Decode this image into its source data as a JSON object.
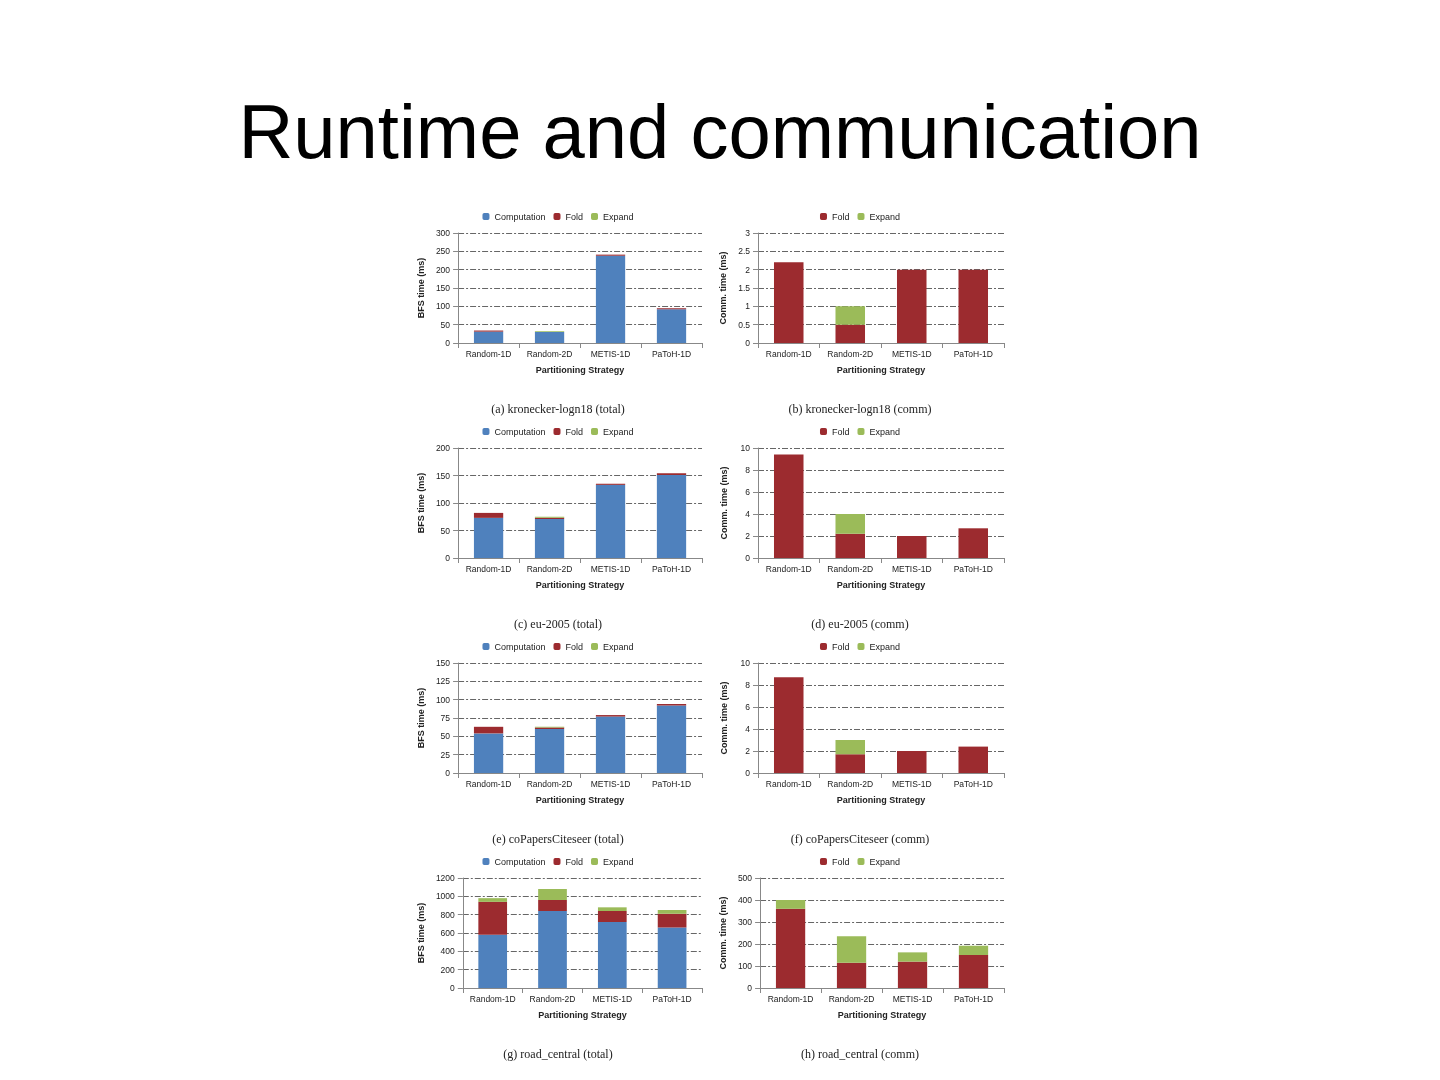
{
  "chart_data": [
    {
      "type": "bar",
      "title": "Runtime and communication",
      "annotations": [
        "(a) kronecker-logn18 (total)"
      ],
      "xlabel": "Partitioning Strategy",
      "ylabel": "BFS time (ms)",
      "categories": [
        "Random-1D",
        "Random-2D",
        "METIS-1D",
        "PaToH-1D"
      ],
      "stacked": true,
      "grid": "y",
      "legend": "top",
      "ylim": [
        0,
        300
      ],
      "yticks": [
        0,
        50,
        100,
        150,
        200,
        250,
        300
      ],
      "series": [
        {
          "name": "Computation",
          "color": "#4f81bd",
          "values": [
            31,
            30,
            238,
            92
          ]
        },
        {
          "name": "Fold",
          "color": "#9c2b2f",
          "values": [
            3,
            null,
            3,
            3
          ]
        },
        {
          "name": "Expand",
          "color": "#9bbb59",
          "values": [
            0,
            2,
            0,
            0
          ]
        }
      ]
    },
    {
      "type": "bar",
      "annotations": [
        "(b) kronecker-logn18 (comm)"
      ],
      "xlabel": "Partitioning Strategy",
      "ylabel": "Comm. time (ms)",
      "categories": [
        "Random-1D",
        "Random-2D",
        "METIS-1D",
        "PaToH-1D"
      ],
      "stacked": true,
      "grid": "y",
      "legend": "top",
      "ylim": [
        0,
        3
      ],
      "yticks": [
        0,
        0.5,
        1,
        1.5,
        2,
        2.5,
        3
      ],
      "series": [
        {
          "name": "Fold",
          "color": "#9c2b2f",
          "values": [
            2.2,
            0.5,
            2,
            2
          ]
        },
        {
          "name": "Expand",
          "color": "#9bbb59",
          "values": [
            0,
            0.5,
            0,
            0
          ]
        }
      ]
    },
    {
      "type": "bar",
      "annotations": [
        "(c) eu-2005 (total)"
      ],
      "xlabel": "Partitioning Strategy",
      "ylabel": "BFS time (ms)",
      "categories": [
        "Random-1D",
        "Random-2D",
        "METIS-1D",
        "PaToH-1D"
      ],
      "stacked": true,
      "grid": "y",
      "legend": "top",
      "ylim": [
        0,
        200
      ],
      "yticks": [
        0,
        50,
        100,
        150,
        200
      ],
      "series": [
        {
          "name": "Computation",
          "color": "#4f81bd",
          "values": [
            73,
            71,
            133,
            151
          ]
        },
        {
          "name": "Fold",
          "color": "#9c2b2f",
          "values": [
            9,
            2,
            2,
            3
          ]
        },
        {
          "name": "Expand",
          "color": "#9bbb59",
          "values": [
            0,
            2,
            0,
            0
          ]
        }
      ]
    },
    {
      "type": "bar",
      "annotations": [
        "(d) eu-2005 (comm)"
      ],
      "xlabel": "Partitioning Strategy",
      "ylabel": "Comm. time (ms)",
      "categories": [
        "Random-1D",
        "Random-2D",
        "METIS-1D",
        "PaToH-1D"
      ],
      "stacked": true,
      "grid": "y",
      "legend": "top",
      "ylim": [
        0,
        10
      ],
      "yticks": [
        0,
        2,
        4,
        6,
        8,
        10
      ],
      "series": [
        {
          "name": "Fold",
          "color": "#9c2b2f",
          "values": [
            9.4,
            2.2,
            2,
            2.7
          ]
        },
        {
          "name": "Expand",
          "color": "#9bbb59",
          "values": [
            0,
            1.8,
            0,
            0
          ]
        }
      ]
    },
    {
      "type": "bar",
      "annotations": [
        "(e) coPapersCiteseer (total)"
      ],
      "xlabel": "Partitioning Strategy",
      "ylabel": "BFS time (ms)",
      "categories": [
        "Random-1D",
        "Random-2D",
        "METIS-1D",
        "PaToH-1D"
      ],
      "stacked": true,
      "grid": "y",
      "legend": "top",
      "ylim": [
        0,
        150
      ],
      "yticks": [
        0,
        25,
        50,
        75,
        100,
        125,
        150
      ],
      "series": [
        {
          "name": "Computation",
          "color": "#4f81bd",
          "values": [
            54,
            60,
            77,
            92
          ]
        },
        {
          "name": "Fold",
          "color": "#9c2b2f",
          "values": [
            9,
            2,
            2,
            2
          ]
        },
        {
          "name": "Expand",
          "color": "#9bbb59",
          "values": [
            0,
            1,
            0,
            0
          ]
        }
      ]
    },
    {
      "type": "bar",
      "annotations": [
        "(f) coPapersCiteseer (comm)"
      ],
      "xlabel": "Partitioning Strategy",
      "ylabel": "Comm. time (ms)",
      "categories": [
        "Random-1D",
        "Random-2D",
        "METIS-1D",
        "PaToH-1D"
      ],
      "stacked": true,
      "grid": "y",
      "legend": "top",
      "ylim": [
        0,
        10
      ],
      "yticks": [
        0,
        2,
        4,
        6,
        8,
        10
      ],
      "series": [
        {
          "name": "Fold",
          "color": "#9c2b2f",
          "values": [
            8.7,
            1.7,
            2,
            2.4
          ]
        },
        {
          "name": "Expand",
          "color": "#9bbb59",
          "values": [
            0,
            1.3,
            0,
            0
          ]
        }
      ]
    },
    {
      "type": "bar",
      "annotations": [
        "(g) road_central (total)"
      ],
      "xlabel": "Partitioning Strategy",
      "ylabel": "BFS time (ms)",
      "categories": [
        "Random-1D",
        "Random-2D",
        "METIS-1D",
        "PaToH-1D"
      ],
      "stacked": true,
      "grid": "y",
      "legend": "top",
      "ylim": [
        0,
        1200
      ],
      "yticks": [
        0,
        200,
        400,
        600,
        800,
        1000,
        1200
      ],
      "series": [
        {
          "name": "Computation",
          "color": "#4f81bd",
          "values": [
            580,
            840,
            720,
            660
          ]
        },
        {
          "name": "Fold",
          "color": "#9c2b2f",
          "values": [
            360,
            120,
            120,
            150
          ]
        },
        {
          "name": "Expand",
          "color": "#9bbb59",
          "values": [
            40,
            120,
            40,
            40
          ]
        }
      ]
    },
    {
      "type": "bar",
      "annotations": [
        "(h) road_central (comm)"
      ],
      "xlabel": "Partitioning Strategy",
      "ylabel": "Comm. time (ms)",
      "categories": [
        "Random-1D",
        "Random-2D",
        "METIS-1D",
        "PaToH-1D"
      ],
      "stacked": true,
      "grid": "y",
      "legend": "top",
      "ylim": [
        0,
        500
      ],
      "yticks": [
        0,
        100,
        200,
        300,
        400,
        500
      ],
      "series": [
        {
          "name": "Fold",
          "color": "#9c2b2f",
          "values": [
            360,
            115,
            120,
            150
          ]
        },
        {
          "name": "Expand",
          "color": "#9bbb59",
          "values": [
            40,
            120,
            42,
            42
          ]
        }
      ]
    }
  ]
}
